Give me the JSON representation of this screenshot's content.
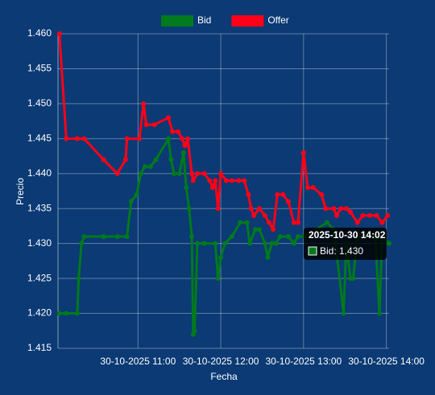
{
  "chart_data": {
    "type": "line",
    "x_label": "Fecha",
    "y_label": "Precio",
    "xlim": [
      "30-10-2025 10:02",
      "30-10-2025 14:02"
    ],
    "xticks": [
      "30-10-2025 11:00",
      "30-10-2025 12:00",
      "30-10-2025 13:00",
      "30-10-2025 14:00"
    ],
    "ylim": [
      1.415,
      1.46
    ],
    "yticks": [
      1.415,
      {
        "value": 1.42,
        "label": "1.420"
      },
      1.425,
      {
        "value": 1.43,
        "label": "1.430"
      },
      1.435,
      {
        "value": 1.44,
        "label": "1.440"
      },
      1.445,
      {
        "value": 1.45,
        "label": "1.450"
      },
      1.455,
      {
        "value": 1.46,
        "label": "1.460"
      }
    ],
    "grid": true,
    "legend": "top",
    "series": [
      {
        "name": "Bid",
        "color": "#007a1c",
        "x": [
          "30-10-2025 10:03",
          "30-10-2025 10:08",
          "30-10-2025 10:16",
          "30-10-2025 10:17",
          "30-10-2025 10:19",
          "30-10-2025 10:21",
          "30-10-2025 10:35",
          "30-10-2025 10:45",
          "30-10-2025 10:52",
          "30-10-2025 10:55",
          "30-10-2025 10:59",
          "30-10-2025 11:02",
          "30-10-2025 11:05",
          "30-10-2025 11:09",
          "30-10-2025 11:13",
          "30-10-2025 11:22",
          "30-10-2025 11:24",
          "30-10-2025 11:26",
          "30-10-2025 11:30",
          "30-10-2025 11:33",
          "30-10-2025 11:35",
          "30-10-2025 11:37",
          "30-10-2025 11:39",
          "30-10-2025 11:40",
          "30-10-2025 11:41",
          "30-10-2025 11:43",
          "30-10-2025 11:48",
          "30-10-2025 11:56",
          "30-10-2025 11:58",
          "30-10-2025 12:00",
          "30-10-2025 12:03",
          "30-10-2025 12:08",
          "30-10-2025 12:14",
          "30-10-2025 12:19",
          "30-10-2025 12:21",
          "30-10-2025 12:25",
          "30-10-2025 12:28",
          "30-10-2025 12:32",
          "30-10-2025 12:34",
          "30-10-2025 12:37",
          "30-10-2025 12:40",
          "30-10-2025 12:43",
          "30-10-2025 12:49",
          "30-10-2025 12:53",
          "30-10-2025 12:56",
          "30-10-2025 13:01",
          "30-10-2025 13:17",
          "30-10-2025 13:22",
          "30-10-2025 13:29",
          "30-10-2025 13:31",
          "30-10-2025 13:34",
          "30-10-2025 13:36",
          "30-10-2025 13:39",
          "30-10-2025 13:45",
          "30-10-2025 13:52",
          "30-10-2025 13:55",
          "30-10-2025 13:57",
          "30-10-2025 14:02"
        ],
        "values": [
          1.42,
          1.42,
          1.42,
          1.425,
          1.43,
          1.431,
          1.431,
          1.431,
          1.431,
          1.436,
          1.437,
          1.44,
          1.441,
          1.441,
          1.442,
          1.445,
          1.442,
          1.44,
          1.44,
          1.443,
          1.438,
          1.435,
          1.431,
          1.417,
          1.4175,
          1.43,
          1.43,
          1.43,
          1.425,
          1.428,
          1.43,
          1.431,
          1.433,
          1.433,
          1.43,
          1.432,
          1.432,
          1.43,
          1.428,
          1.43,
          1.43,
          1.431,
          1.431,
          1.43,
          1.431,
          1.431,
          1.433,
          1.432,
          1.42,
          1.43,
          1.425,
          1.425,
          1.431,
          1.431,
          1.431,
          1.42,
          1.431,
          1.43
        ]
      },
      {
        "name": "Offer",
        "color": "#ff0018",
        "x": [
          "30-10-2025 10:03",
          "30-10-2025 10:08",
          "30-10-2025 10:16",
          "30-10-2025 10:21",
          "30-10-2025 10:35",
          "30-10-2025 10:45",
          "30-10-2025 10:51",
          "30-10-2025 10:52",
          "30-10-2025 11:01",
          "30-10-2025 11:04",
          "30-10-2025 11:06",
          "30-10-2025 11:12",
          "30-10-2025 11:22",
          "30-10-2025 11:25",
          "30-10-2025 11:29",
          "30-10-2025 11:32",
          "30-10-2025 11:34",
          "30-10-2025 11:36",
          "30-10-2025 11:39",
          "30-10-2025 11:40",
          "30-10-2025 11:43",
          "30-10-2025 11:48",
          "30-10-2025 11:52",
          "30-10-2025 11:54",
          "30-10-2025 11:56",
          "30-10-2025 11:58",
          "30-10-2025 12:00",
          "30-10-2025 12:04",
          "30-10-2025 12:08",
          "30-10-2025 12:13",
          "30-10-2025 12:17",
          "30-10-2025 12:20",
          "30-10-2025 12:22",
          "30-10-2025 12:24",
          "30-10-2025 12:28",
          "30-10-2025 12:32",
          "30-10-2025 12:35",
          "30-10-2025 12:38",
          "30-10-2025 12:41",
          "30-10-2025 12:45",
          "30-10-2025 12:49",
          "30-10-2025 12:53",
          "30-10-2025 12:56",
          "30-10-2025 13:00",
          "30-10-2025 13:03",
          "30-10-2025 13:07",
          "30-10-2025 13:13",
          "30-10-2025 13:16",
          "30-10-2025 13:22",
          "30-10-2025 13:24",
          "30-10-2025 13:27",
          "30-10-2025 13:31",
          "30-10-2025 13:34",
          "30-10-2025 13:39",
          "30-10-2025 13:43",
          "30-10-2025 13:48",
          "30-10-2025 13:53",
          "30-10-2025 13:57",
          "30-10-2025 14:01"
        ],
        "values": [
          1.46,
          1.445,
          1.445,
          1.445,
          1.442,
          1.44,
          1.442,
          1.445,
          1.445,
          1.45,
          1.447,
          1.447,
          1.448,
          1.446,
          1.446,
          1.445,
          1.444,
          1.445,
          1.44,
          1.439,
          1.44,
          1.44,
          1.439,
          1.438,
          1.439,
          1.435,
          1.44,
          1.439,
          1.439,
          1.439,
          1.439,
          1.437,
          1.435,
          1.434,
          1.435,
          1.434,
          1.433,
          1.432,
          1.437,
          1.437,
          1.436,
          1.433,
          1.433,
          1.443,
          1.438,
          1.438,
          1.437,
          1.435,
          1.435,
          1.434,
          1.435,
          1.435,
          1.4345,
          1.433,
          1.434,
          1.434,
          1.434,
          1.433,
          1.434
        ]
      }
    ],
    "tooltip": {
      "title": "2025-10-30 14:02",
      "label": "Bid: 1.430",
      "series": 0
    }
  }
}
